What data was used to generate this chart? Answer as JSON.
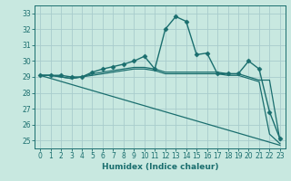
{
  "xlabel": "Humidex (Indice chaleur)",
  "bg_color": "#c8e8e0",
  "grid_color": "#b0d4cc",
  "line_color": "#1a6e6e",
  "xlim": [
    -0.5,
    23.5
  ],
  "ylim": [
    24.5,
    33.5
  ],
  "yticks": [
    25,
    26,
    27,
    28,
    29,
    30,
    31,
    32,
    33
  ],
  "xticks": [
    0,
    1,
    2,
    3,
    4,
    5,
    6,
    7,
    8,
    9,
    10,
    11,
    12,
    13,
    14,
    15,
    16,
    17,
    18,
    19,
    20,
    21,
    22,
    23
  ],
  "series": [
    {
      "x": [
        0,
        1,
        2,
        3,
        4,
        5,
        6,
        7,
        8,
        9,
        10,
        11,
        12,
        13,
        14,
        15,
        16,
        17,
        18,
        19,
        20,
        21,
        22,
        23
      ],
      "y": [
        29.1,
        29.1,
        29.1,
        29.0,
        29.0,
        29.3,
        29.5,
        29.65,
        29.8,
        30.0,
        30.3,
        29.5,
        32.0,
        32.8,
        32.5,
        30.4,
        30.5,
        29.2,
        29.2,
        29.2,
        30.0,
        29.5,
        26.8,
        25.1
      ],
      "marker": "D",
      "markersize": 2.5,
      "linewidth": 1.0
    },
    {
      "x": [
        0,
        1,
        2,
        3,
        4,
        5,
        6,
        7,
        8,
        9,
        10,
        11,
        12,
        13,
        14,
        15,
        16,
        17,
        18,
        19,
        20,
        21,
        22,
        23
      ],
      "y": [
        29.1,
        29.1,
        29.0,
        28.9,
        29.0,
        29.2,
        29.3,
        29.4,
        29.5,
        29.6,
        29.6,
        29.5,
        29.3,
        29.3,
        29.3,
        29.3,
        29.3,
        29.3,
        29.2,
        29.2,
        29.0,
        28.8,
        28.8,
        25.0
      ],
      "marker": null,
      "markersize": 0,
      "linewidth": 0.9
    },
    {
      "x": [
        0,
        1,
        2,
        3,
        4,
        5,
        6,
        7,
        8,
        9,
        10,
        11,
        12,
        13,
        14,
        15,
        16,
        17,
        18,
        19,
        20,
        21,
        22,
        23
      ],
      "y": [
        29.1,
        29.1,
        29.0,
        28.9,
        29.0,
        29.1,
        29.2,
        29.3,
        29.4,
        29.5,
        29.5,
        29.4,
        29.2,
        29.2,
        29.2,
        29.2,
        29.2,
        29.2,
        29.1,
        29.1,
        28.9,
        28.7,
        25.4,
        24.8
      ],
      "marker": null,
      "markersize": 0,
      "linewidth": 0.9
    },
    {
      "x": [
        0,
        23
      ],
      "y": [
        29.1,
        24.7
      ],
      "marker": null,
      "markersize": 0,
      "linewidth": 0.9
    }
  ]
}
